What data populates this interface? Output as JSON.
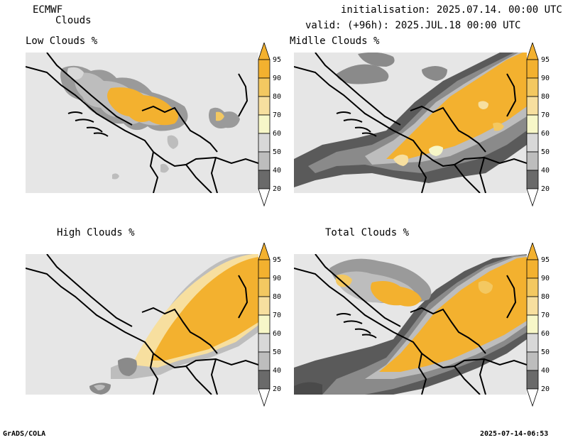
{
  "header": {
    "model": "ECMWF",
    "product": "Clouds",
    "initialisation": "initialisation: 2025.07.14. 00:00 UTC",
    "valid": "valid: (+96h): 2025.JUL.18 00:00 UTC"
  },
  "panels": [
    {
      "title": "Low Clouds %"
    },
    {
      "title": "Midlle Clouds %"
    },
    {
      "title": "High Clouds %"
    },
    {
      "title": "Total Clouds %"
    }
  ],
  "colorbar": {
    "labels": [
      "95",
      "90",
      "80",
      "70",
      "60",
      "50",
      "40",
      "20"
    ],
    "colors": [
      "#f3b12f",
      "#f3c861",
      "#f7df9f",
      "#f7f7c8",
      "#d8d8d8",
      "#bdbdbd",
      "#9a9a9a",
      "#6a6a6a",
      "#4a4a4a",
      "#ffffff"
    ]
  },
  "colors": {
    "background_field": "#e6e6e6",
    "cloud_orange": "#f3b12f",
    "cloud_light": "#f7df9f",
    "cloud_grey1": "#bdbdbd",
    "cloud_grey2": "#8a8a8a",
    "cloud_dark": "#5a5a5a"
  },
  "footer": {
    "left": "GrADS/COLA",
    "right": "2025-07-14-06:53"
  }
}
